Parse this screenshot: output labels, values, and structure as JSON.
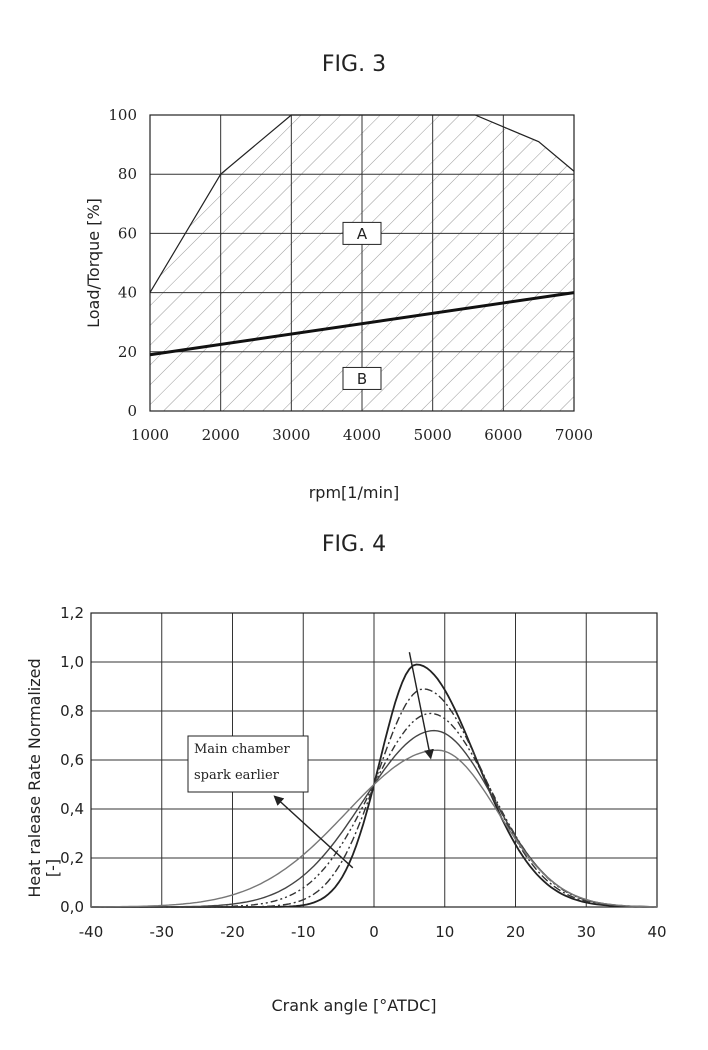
{
  "figures": {
    "fig3": {
      "title": "FIG. 3"
    },
    "fig4": {
      "title": "FIG. 4"
    }
  },
  "chart_data": [
    {
      "type": "area",
      "title": "FIG. 3",
      "xlabel": "rpm[1/min]",
      "ylabel": "Load/Torque [%]",
      "xlim": [
        1000,
        7000
      ],
      "ylim": [
        0,
        100
      ],
      "xticks": [
        "1000",
        "2000",
        "3000",
        "4000",
        "5000",
        "6000",
        "7000"
      ],
      "yticks": [
        "0",
        "20",
        "40",
        "60",
        "80",
        "100"
      ],
      "grid": true,
      "upper_boundary": {
        "x": [
          1000,
          2000,
          3000,
          5600,
          6500,
          7000
        ],
        "y": [
          40,
          80,
          100,
          100,
          91,
          81
        ]
      },
      "divider_line": {
        "x": [
          1000,
          7000
        ],
        "y": [
          19,
          40
        ]
      },
      "regions": [
        {
          "label": "A",
          "x": 4000,
          "y": 60
        },
        {
          "label": "B",
          "x": 4000,
          "y": 11
        }
      ]
    },
    {
      "type": "line",
      "title": "FIG. 4",
      "xlabel": "Crank angle [°ATDC]",
      "ylabel_lines": [
        "Heat ralease Rate Normalized",
        "[-]"
      ],
      "xlim": [
        -40,
        40
      ],
      "ylim": [
        0,
        1.2
      ],
      "xticks": [
        "-40",
        "-30",
        "-20",
        "-10",
        "0",
        "10",
        "20",
        "30",
        "40"
      ],
      "yticks": [
        "0,0",
        "0,2",
        "0,4",
        "0,6",
        "0,8",
        "1,0",
        "1,2"
      ],
      "grid": true,
      "series": [
        {
          "peak_x": 6,
          "peak_y": 0.99,
          "color": "#222222",
          "dash": ""
        },
        {
          "peak_x": 7,
          "peak_y": 0.89,
          "color": "#333333",
          "dash": "8,3,2,3"
        },
        {
          "peak_x": 8,
          "peak_y": 0.79,
          "color": "#333333",
          "dash": "7,3,2,3,2,3"
        },
        {
          "peak_x": 8.5,
          "peak_y": 0.72,
          "color": "#444444",
          "dash": ""
        },
        {
          "peak_x": 9,
          "peak_y": 0.64,
          "color": "#777777",
          "dash": ""
        }
      ],
      "annotation": {
        "lines": [
          "Main chamber",
          "spark earlier"
        ]
      },
      "arrows": [
        {
          "from": [
            5,
            1.04
          ],
          "to": [
            8,
            0.61
          ]
        },
        {
          "from": [
            -3,
            0.16
          ],
          "to": [
            -14,
            0.45
          ]
        }
      ]
    }
  ]
}
